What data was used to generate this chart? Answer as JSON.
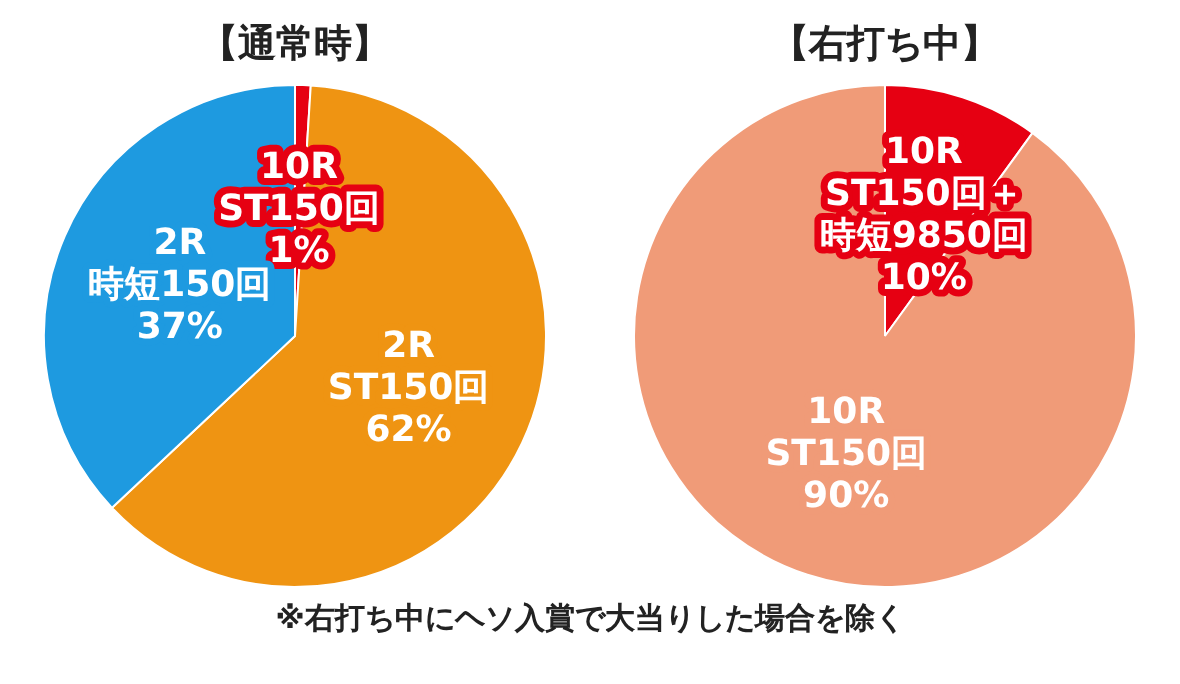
{
  "chart_data": [
    {
      "type": "pie",
      "title": "【通常時】",
      "categories": [
        "10R\nST150回",
        "2R\nST150回",
        "2R\n時短150回"
      ],
      "values": [
        1,
        62,
        37
      ],
      "value_labels": [
        "1%",
        "62%",
        "37%"
      ],
      "colors": [
        "#e60012",
        "#ef9412",
        "#1e9ae0"
      ],
      "legend": false
    },
    {
      "type": "pie",
      "title": "【右打ち中】",
      "categories": [
        "10R\nST150回＋時短9850回",
        "10R\nST150回"
      ],
      "values": [
        10,
        90
      ],
      "value_labels": [
        "10%",
        "90%"
      ],
      "colors": [
        "#e60012",
        "#f09b78"
      ],
      "legend": false,
      "annotations": [
        "※右打ち中にヘソ入賞で大当りした場合を除く"
      ]
    }
  ]
}
